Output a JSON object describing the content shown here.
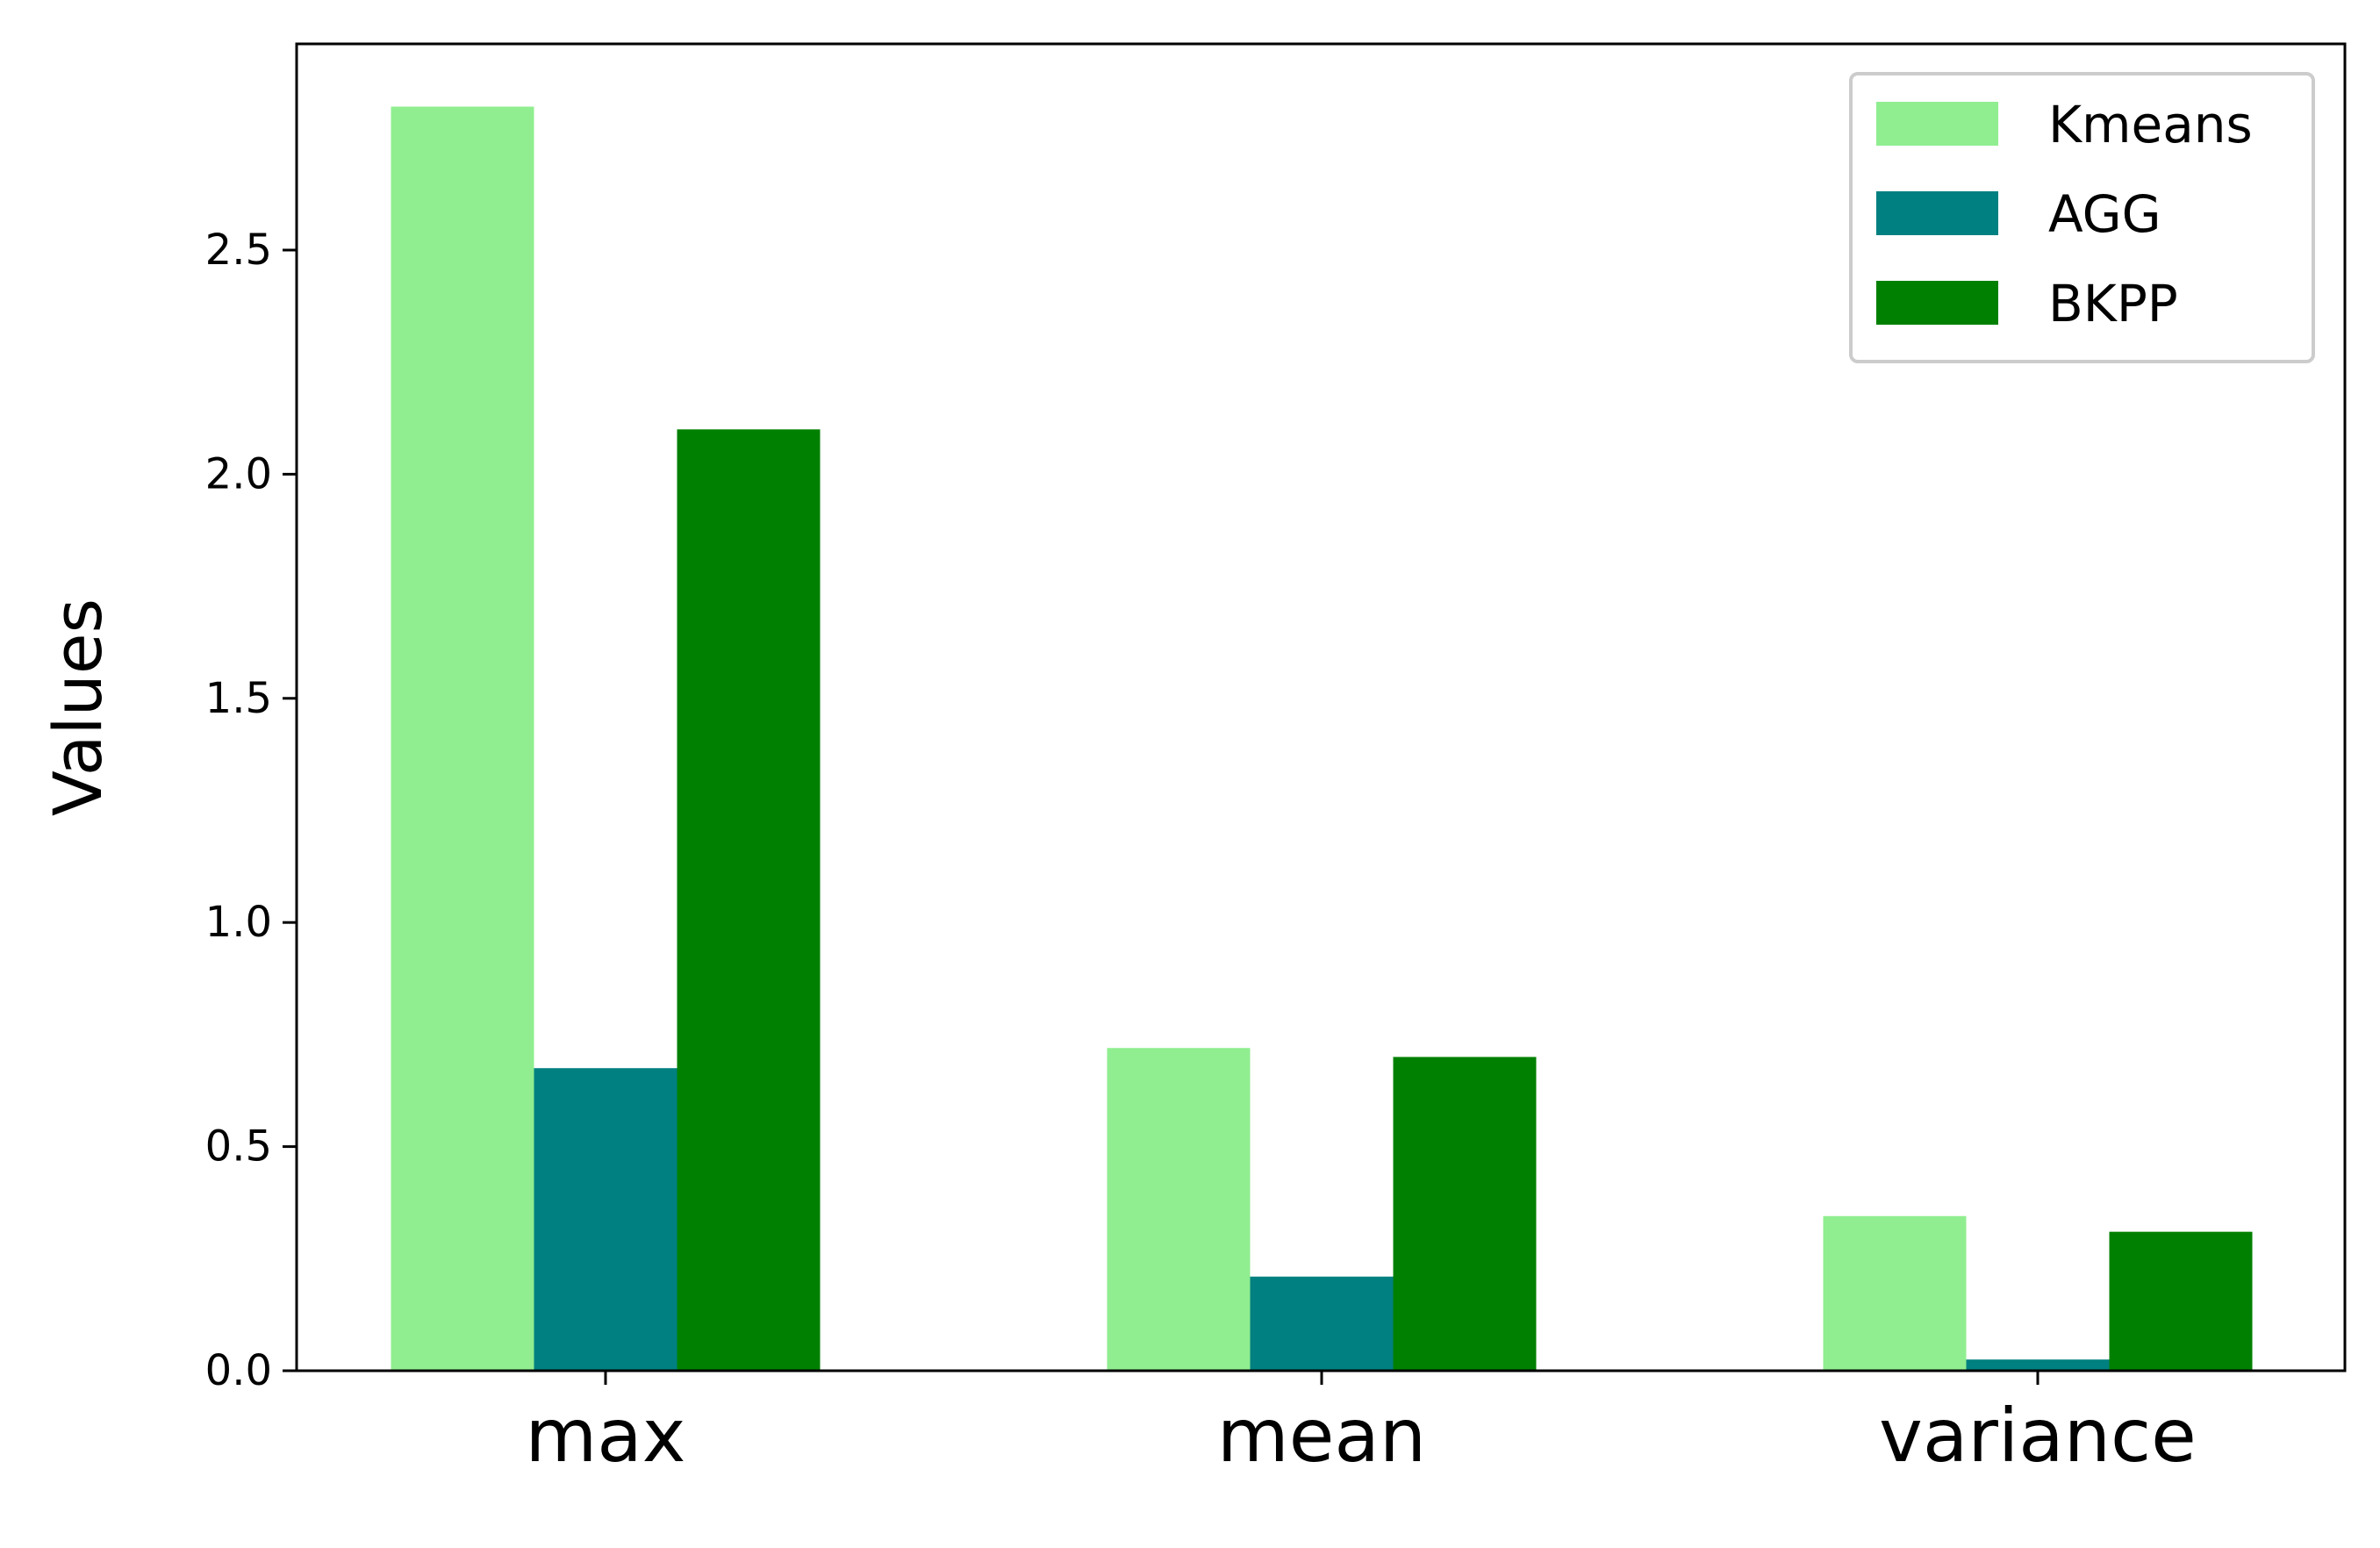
{
  "chart_data": {
    "type": "bar",
    "categories": [
      "max",
      "mean",
      "variance"
    ],
    "series": [
      {
        "name": "Kmeans",
        "color": "#90ee90",
        "values": [
          2.82,
          0.72,
          0.345
        ]
      },
      {
        "name": "AGG",
        "color": "#008080",
        "values": [
          0.675,
          0.21,
          0.025
        ]
      },
      {
        "name": "BKPP",
        "color": "#008000",
        "values": [
          2.1,
          0.7,
          0.31
        ]
      }
    ],
    "ylabel": "Values",
    "xlabel": "",
    "ylim": [
      0,
      2.96
    ],
    "yticks": [
      0.0,
      0.5,
      1.0,
      1.5,
      2.0,
      2.5
    ],
    "ytick_labels": [
      "0.0",
      "0.5",
      "1.0",
      "1.5",
      "2.0",
      "2.5"
    ],
    "legend_position": "top-right",
    "grid": false
  }
}
